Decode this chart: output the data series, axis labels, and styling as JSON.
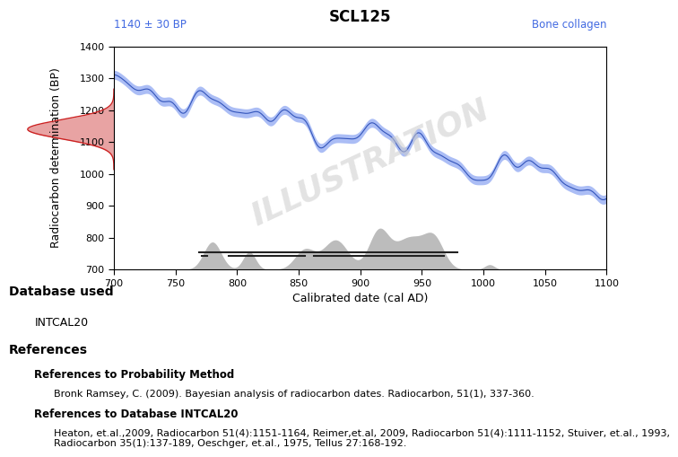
{
  "title": "SCL125",
  "label_left": "1140 ± 30 BP",
  "label_right": "Bone collagen",
  "xlabel": "Calibrated date (cal AD)",
  "ylabel": "Radiocarbon determination (BP)",
  "xlim": [
    700,
    1100
  ],
  "ylim": [
    700,
    1400
  ],
  "xticks": [
    700,
    750,
    800,
    850,
    900,
    950,
    1000,
    1050,
    1100
  ],
  "yticks": [
    700,
    800,
    900,
    1000,
    1100,
    1200,
    1300,
    1400
  ],
  "watermark": "ILLUSTRATION",
  "database": "INTCAL20",
  "db_label": "Database used",
  "ref_label": "References",
  "ref1_bold": "References to Probability Method",
  "ref1_text": "Bronk Ramsey, C. (2009). Bayesian analysis of radiocarbon dates. Radiocarbon, 51(1), 337-360.",
  "ref2_bold": "References to Database INTCAL20",
  "ref2_text": "Heaton, et.al.,2009, Radiocarbon 51(4):1151-1164, Reimer,et.al, 2009, Radiocarbon 51(4):1111-1152, Stuiver, et.al., 1993,\nRadiocarbon 35(1):137-189, Oeschger, et.al., 1975, Tellus 27:168-192.",
  "mean_14c": 1140,
  "std_14c": 30,
  "label_color_left": "#4169E1",
  "label_color_right": "#4169E1",
  "cal_band_color": "#6688EE",
  "cal_band_alpha": 0.55,
  "cal_line_color": "#3355BB",
  "prob_fill_color": "#999999",
  "prob_fill_alpha": 0.65,
  "gauss_fill_color": "#CC3333",
  "gauss_fill_alpha": 0.45,
  "gauss_outline_color": "#CC2222",
  "bracket_color": "#222222",
  "bracket_lw": 1.5,
  "tick_lw": 1.5
}
